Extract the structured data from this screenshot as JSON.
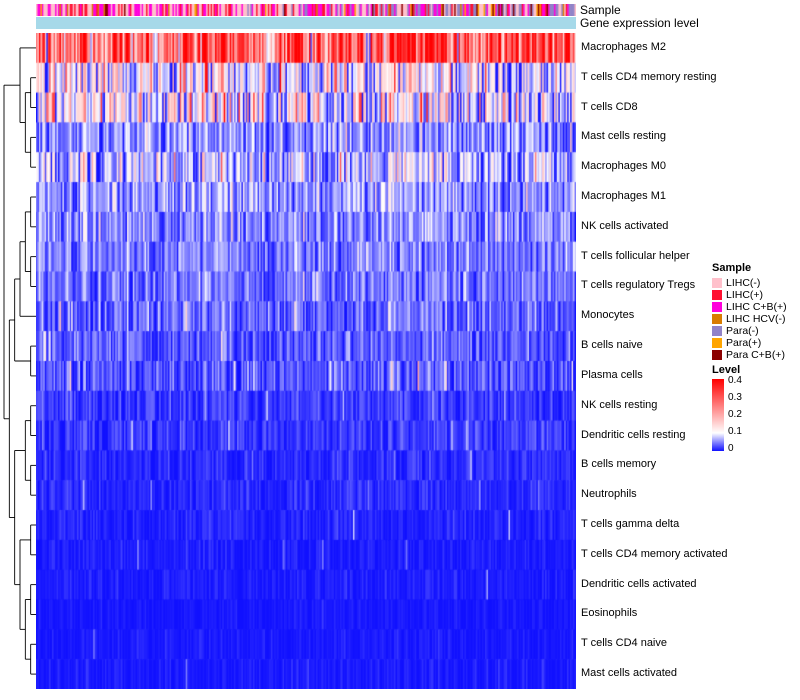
{
  "figure": {
    "background": "#FFFFFF"
  },
  "annotations": {
    "sample_label": "Sample",
    "gene_label": "Gene expression level"
  },
  "chart_data": {
    "type": "heatmap",
    "n_columns": 368,
    "colorscale": {
      "domain": [
        0,
        0.4
      ],
      "stops": [
        [
          0,
          "#1111FF"
        ],
        [
          0.1,
          "#FFFFFF"
        ],
        [
          0.4,
          "#FF0000"
        ]
      ]
    },
    "rows": [
      {
        "label": "Macrophages M2",
        "mean": 0.3,
        "sd": 0.06,
        "spike_p": 0.03,
        "spike_v": 0.08,
        "trend": 0.06
      },
      {
        "label": "T cells CD4 memory resting",
        "mean": 0.1,
        "sd": 0.055,
        "spike_p": 0.1,
        "spike_v": 0.14,
        "trend": -0.02
      },
      {
        "label": "T cells CD8",
        "mean": 0.09,
        "sd": 0.06,
        "spike_p": 0.12,
        "spike_v": 0.16,
        "trend": -0.02
      },
      {
        "label": "Mast cells resting",
        "mean": 0.05,
        "sd": 0.028,
        "spike_p": 0.02,
        "spike_v": 0.08,
        "trend": 0
      },
      {
        "label": "Macrophages M0",
        "mean": 0.07,
        "sd": 0.045,
        "spike_p": 0.06,
        "spike_v": 0.12,
        "trend": 0
      },
      {
        "label": "Macrophages M1",
        "mean": 0.055,
        "sd": 0.025,
        "spike_p": 0.02,
        "spike_v": 0.08,
        "trend": 0
      },
      {
        "label": "NK cells activated",
        "mean": 0.05,
        "sd": 0.022,
        "spike_p": 0.015,
        "spike_v": 0.07,
        "trend": 0
      },
      {
        "label": "T cells follicular helper",
        "mean": 0.045,
        "sd": 0.02,
        "spike_p": 0.015,
        "spike_v": 0.07,
        "trend": 0
      },
      {
        "label": "T cells regulatory  Tregs",
        "mean": 0.04,
        "sd": 0.02,
        "spike_p": 0.01,
        "spike_v": 0.06,
        "trend": 0
      },
      {
        "label": "Monocytes",
        "mean": 0.035,
        "sd": 0.022,
        "spike_p": 0.02,
        "spike_v": 0.08,
        "trend": 0
      },
      {
        "label": "B cells naive",
        "mean": 0.03,
        "sd": 0.018,
        "spike_p": 0.01,
        "spike_v": 0.07,
        "trend": 0
      },
      {
        "label": "Plasma cells",
        "mean": 0.028,
        "sd": 0.022,
        "spike_p": 0.02,
        "spike_v": 0.1,
        "trend": 0
      },
      {
        "label": "NK cells resting",
        "mean": 0.016,
        "sd": 0.014,
        "spike_p": 0.01,
        "spike_v": 0.06,
        "trend": 0
      },
      {
        "label": "Dendritic cells resting",
        "mean": 0.015,
        "sd": 0.013,
        "spike_p": 0.01,
        "spike_v": 0.05,
        "trend": 0
      },
      {
        "label": "B cells memory",
        "mean": 0.01,
        "sd": 0.01,
        "spike_p": 0.008,
        "spike_v": 0.05,
        "trend": 0
      },
      {
        "label": "Neutrophils",
        "mean": 0.008,
        "sd": 0.009,
        "spike_p": 0.008,
        "spike_v": 0.05,
        "trend": 0
      },
      {
        "label": "T cells gamma delta",
        "mean": 0.006,
        "sd": 0.008,
        "spike_p": 0.006,
        "spike_v": 0.05,
        "trend": 0
      },
      {
        "label": "T cells CD4 memory activated",
        "mean": 0.004,
        "sd": 0.006,
        "spike_p": 0.005,
        "spike_v": 0.04,
        "trend": 0
      },
      {
        "label": "Dendritic cells activated",
        "mean": 0.004,
        "sd": 0.006,
        "spike_p": 0.004,
        "spike_v": 0.04,
        "trend": 0
      },
      {
        "label": "Eosinophils",
        "mean": 0.002,
        "sd": 0.004,
        "spike_p": 0.003,
        "spike_v": 0.03,
        "trend": 0
      },
      {
        "label": "T cells CD4 naive",
        "mean": 0.002,
        "sd": 0.005,
        "spike_p": 0.004,
        "spike_v": 0.04,
        "trend": 0
      },
      {
        "label": "Mast cells activated",
        "mean": 0.003,
        "sd": 0.006,
        "spike_p": 0.004,
        "spike_v": 0.04,
        "trend": 0
      }
    ],
    "dendrogram": [
      [
        0,
        [
          [
            1,
            2
          ],
          [
            3,
            4
          ]
        ]
      ],
      [
        [
          [
            [
              [
                5,
                6
              ],
              [
                7,
                8
              ]
            ],
            9
          ],
          [
            10,
            11
          ]
        ],
        [
          [
            [
              12,
              13
            ],
            [
              14,
              15
            ]
          ],
          [
            [
              16,
              17
            ],
            [
              [
                18,
                19
              ],
              [
                20,
                21
              ]
            ]
          ]
        ]
      ]
    ],
    "sample_annotation": {
      "label": "Sample",
      "categories": [
        {
          "label": "LIHC(-)",
          "color": "#FFC0CB",
          "weight": 0.3,
          "slope": -0.15
        },
        {
          "label": "LIHC(+)",
          "color": "#FF1030",
          "weight": 0.13,
          "slope": -0.05
        },
        {
          "label": "LIHC C+B(+)",
          "color": "#FF00DC",
          "weight": 0.25,
          "slope": -0.1
        },
        {
          "label": "LIHC HCV(-)",
          "color": "#D97C00",
          "weight": 0.03,
          "slope": 0
        },
        {
          "label": "Para(-)",
          "color": "#9183C8",
          "weight": 0.15,
          "slope": 0.25
        },
        {
          "label": "Para(+)",
          "color": "#FFA500",
          "weight": 0.04,
          "slope": 0.02
        },
        {
          "label": "Para C+B(+)",
          "color": "#8B0000",
          "weight": 0.05,
          "slope": 0.03
        }
      ]
    },
    "gene_annotation": {
      "label": "Gene expression level",
      "color": "#A6D9E9"
    }
  },
  "legend_sample": {
    "title": "Sample"
  },
  "legend_level": {
    "title": "Level",
    "ticks": [
      "0.4",
      "0.3",
      "0.2",
      "0.1",
      "0"
    ]
  }
}
